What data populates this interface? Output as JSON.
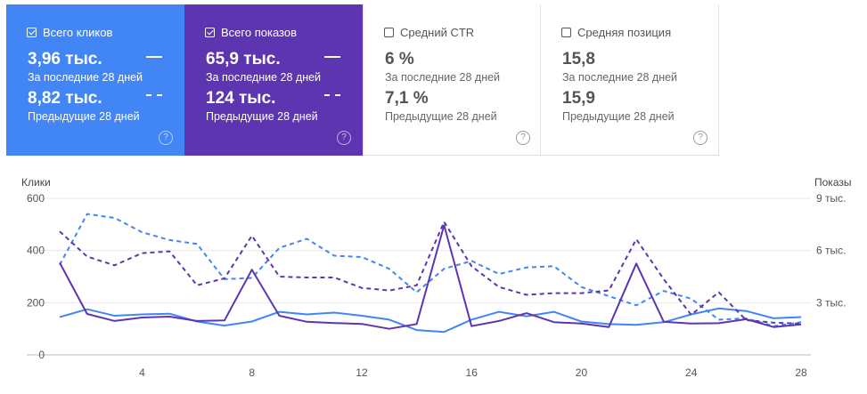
{
  "cards": [
    {
      "title": "Всего кликов",
      "checked": true,
      "current": "3,96 тыс.",
      "current_label": "За последние 28 дней",
      "previous": "8,82 тыс.",
      "previous_label": "Предыдущие 28 дней",
      "color": "#4285f4"
    },
    {
      "title": "Всего показов",
      "checked": true,
      "current": "65,9 тыс.",
      "current_label": "За последние 28 дней",
      "previous": "124 тыс.",
      "previous_label": "Предыдущие 28 дней",
      "color": "#5e35b1"
    },
    {
      "title": "Средний CTR",
      "checked": false,
      "current": "6 %",
      "current_label": "За последние 28 дней",
      "previous": "7,1 %",
      "previous_label": "Предыдущие 28 дней"
    },
    {
      "title": "Средняя позиция",
      "checked": false,
      "current": "15,8",
      "current_label": "За последние 28 дней",
      "previous": "15,9",
      "previous_label": "Предыдущие 28 дней"
    }
  ],
  "help_glyph": "?",
  "chart_data": {
    "type": "line",
    "x": [
      1,
      2,
      3,
      4,
      5,
      6,
      7,
      8,
      9,
      10,
      11,
      12,
      13,
      14,
      15,
      16,
      17,
      18,
      19,
      20,
      21,
      22,
      23,
      24,
      25,
      26,
      27,
      28
    ],
    "y_left_label": "Клики",
    "y_right_label": "Показы",
    "y_left_ticks": [
      "0",
      "200",
      "400",
      "600"
    ],
    "y_left_lim": [
      0,
      600
    ],
    "y_right_ticks": [
      "3 тыс.",
      "6 тыс.",
      "9 тыс."
    ],
    "y_right_lim": [
      0,
      9000
    ],
    "x_ticks": [
      "4",
      "8",
      "12",
      "16",
      "20",
      "24",
      "28"
    ],
    "grid": true,
    "series": [
      {
        "name": "Всего кликов",
        "axis": "left",
        "style": "solid",
        "color": "#4285f4",
        "values": [
          145,
          175,
          150,
          155,
          158,
          128,
          112,
          128,
          165,
          155,
          162,
          150,
          135,
          95,
          88,
          135,
          165,
          148,
          165,
          128,
          118,
          115,
          125,
          155,
          178,
          168,
          140,
          145
        ]
      },
      {
        "name": "Всего кликов",
        "axis": "left",
        "style": "dashed",
        "color": "#4285f4",
        "values": [
          345,
          540,
          525,
          470,
          440,
          425,
          290,
          295,
          410,
          445,
          380,
          375,
          330,
          240,
          330,
          360,
          310,
          335,
          340,
          260,
          225,
          190,
          245,
          215,
          135,
          140,
          110,
          125
        ]
      },
      {
        "name": "Всего показов",
        "axis": "right",
        "style": "solid",
        "color": "#5e35b1",
        "values": [
          5300,
          2350,
          1950,
          2150,
          2200,
          1950,
          1980,
          4900,
          2250,
          1900,
          1830,
          1780,
          1500,
          1770,
          7450,
          1650,
          1950,
          2400,
          1880,
          1800,
          1600,
          5250,
          1900,
          1800,
          1820,
          2050,
          1600,
          1750
        ]
      },
      {
        "name": "Всего показов",
        "axis": "right",
        "style": "dashed",
        "color": "#5e35b1",
        "values": [
          7100,
          5650,
          5150,
          5850,
          5950,
          4000,
          4400,
          6850,
          4500,
          4450,
          4450,
          3850,
          3700,
          4000,
          7650,
          5100,
          3900,
          3450,
          3550,
          3550,
          3700,
          6650,
          4350,
          2300,
          3600,
          2000,
          1850,
          1800
        ]
      }
    ]
  }
}
